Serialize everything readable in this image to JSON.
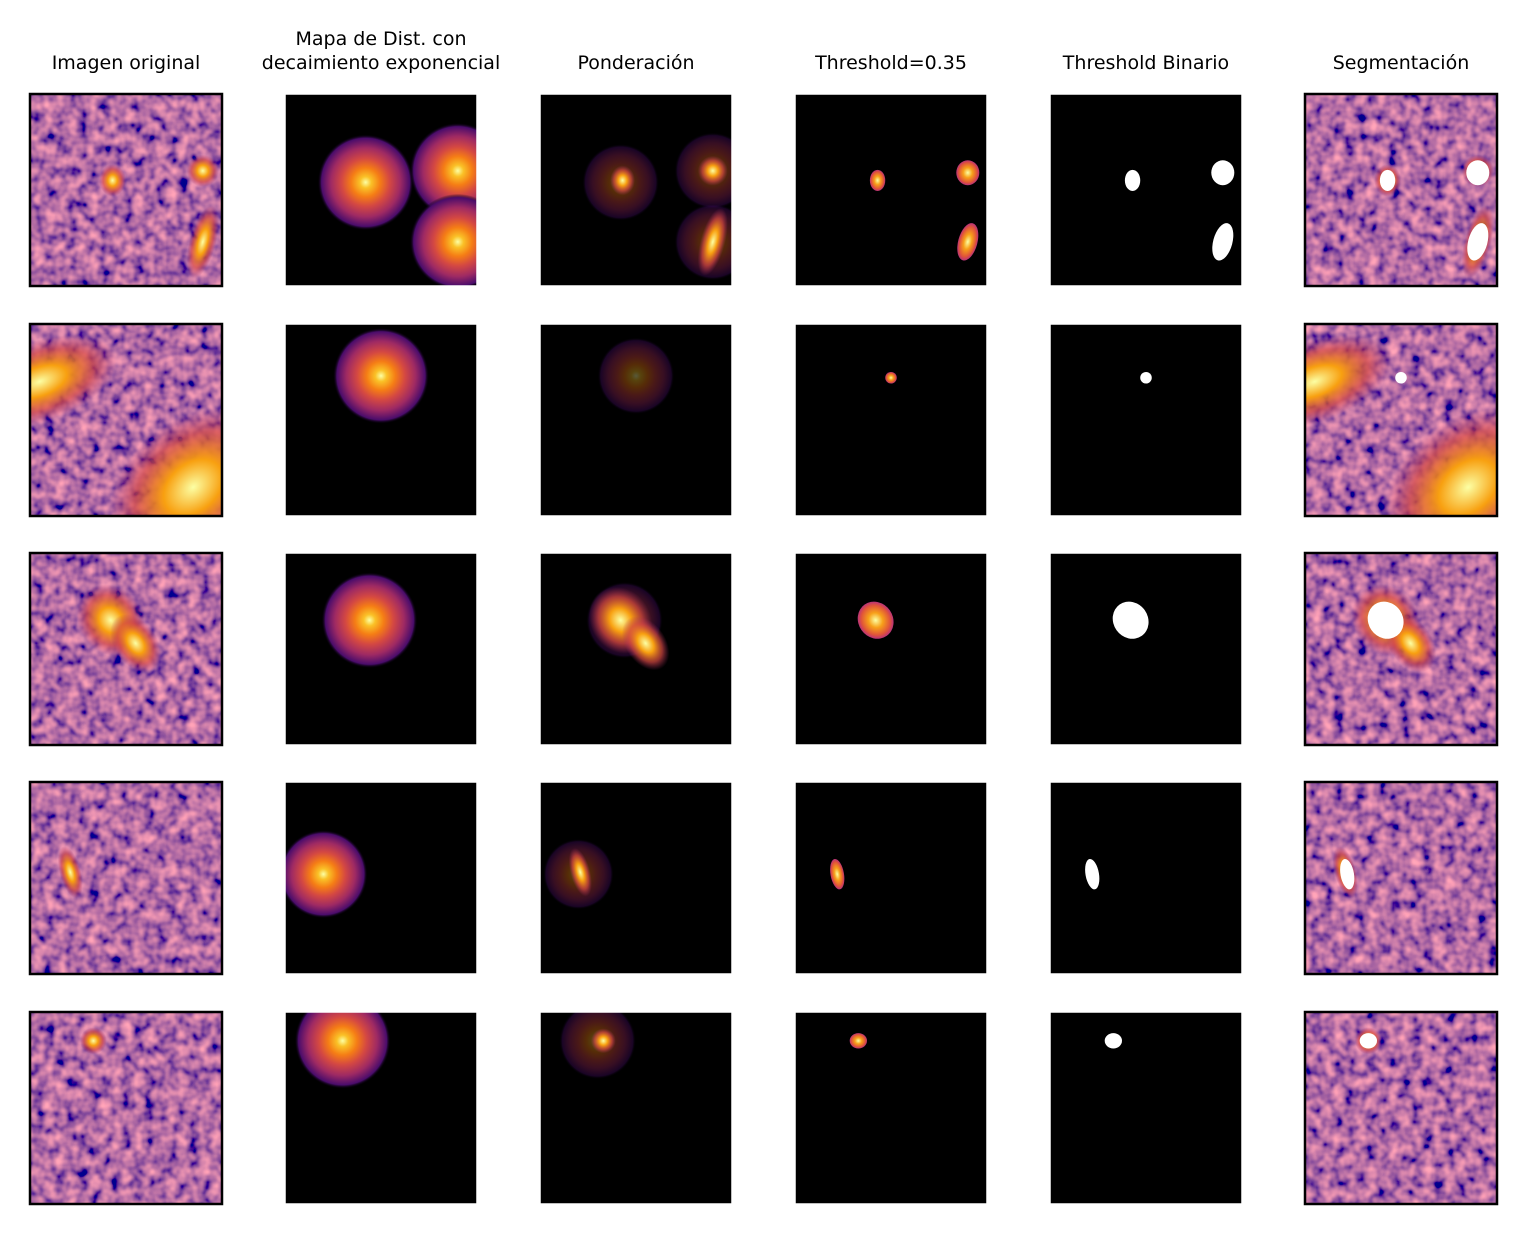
{
  "titles": [
    "Imagen original",
    [
      "Mapa de Dist. con",
      "decaimiento exponencial"
    ],
    "Ponderación",
    "Threshold=0.35",
    "Threshold Binario",
    "Segmentación"
  ]
}
